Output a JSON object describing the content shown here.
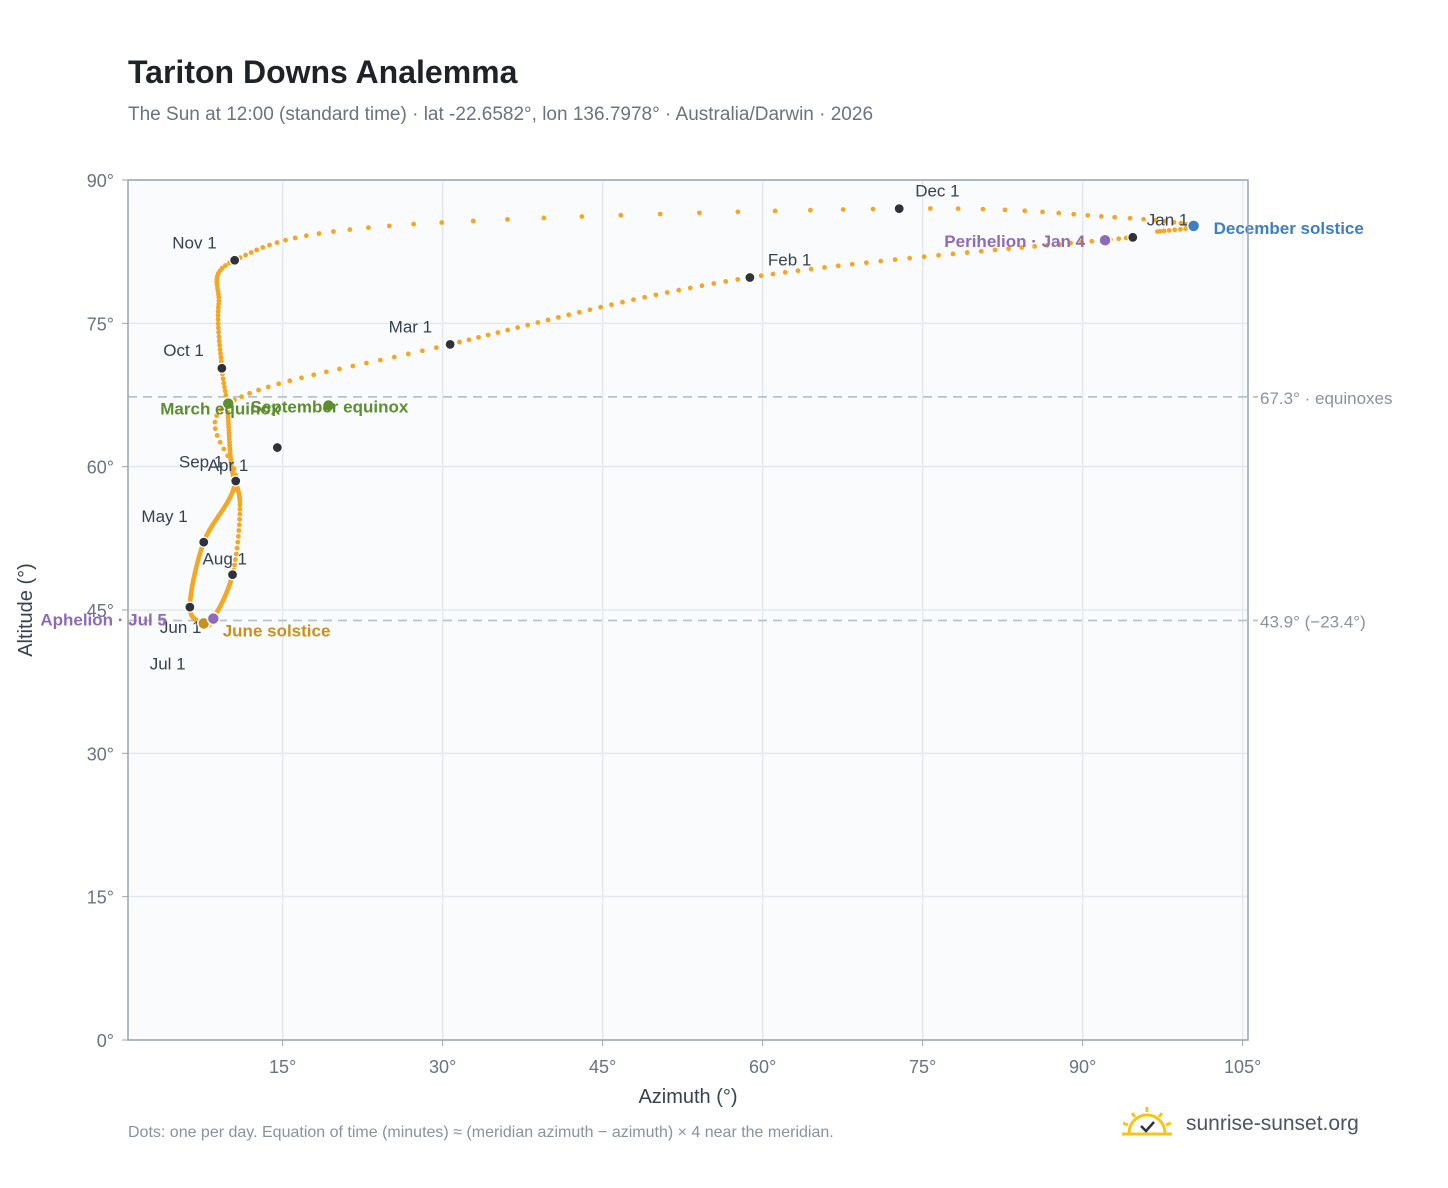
{
  "header": {
    "title": "Tariton Downs Analemma",
    "subtitle": "The Sun at 12:00 (standard time) · lat -22.6582°, lon 136.7978° · Australia/Darwin · 2026"
  },
  "footer": {
    "note": "Dots: one per day. Equation of time (minutes) ≈ (meridian azimuth − azimuth) × 4 near the meridian.",
    "brand": "sunrise-sunset.org"
  },
  "colors": {
    "path": "#f5a623",
    "month_marker": "#2d3339",
    "equinox": "#5b8f2e",
    "june_solstice": "#c8901c",
    "december_solstice": "#3d7ec4",
    "aphelion_perihelion": "#8e6bb8",
    "reference_line": "#b8c2cc",
    "plot_bg": "#f9fbfd",
    "grid": "#e4e9ef",
    "frame": "#9aa3ad"
  },
  "icons": {
    "brand": "sun-logo-icon"
  },
  "chart_data": {
    "type": "scatter",
    "xlabel": "Azimuth (°)",
    "ylabel": "Altitude (°)",
    "xlim": [
      0.5,
      105.5
    ],
    "ylim": [
      0,
      90
    ],
    "x_ticks": [
      15,
      30,
      45,
      60,
      75,
      90,
      105
    ],
    "x_tick_labels": [
      "15°",
      "30°",
      "45°",
      "60°",
      "75°",
      "90°",
      "105°"
    ],
    "y_ticks": [
      0,
      15,
      30,
      45,
      60,
      75,
      90
    ],
    "y_tick_labels": [
      "0°",
      "15°",
      "30°",
      "45°",
      "60°",
      "75°",
      "90°"
    ],
    "grid": true,
    "series_path_note": "daily positions",
    "month_points": [
      {
        "label": "Jan 1",
        "az": 94.7,
        "alt": 84.0
      },
      {
        "label": "Feb 1",
        "az": 58.8,
        "alt": 79.8
      },
      {
        "label": "Mar 1",
        "az": 30.7,
        "alt": 72.8
      },
      {
        "label": "Apr 1",
        "az": 10.6,
        "alt": 58.5
      },
      {
        "label": "May 1",
        "az": 7.6,
        "alt": 52.1
      },
      {
        "label": "Jun 1",
        "az": 6.3,
        "alt": 45.3
      },
      {
        "label": "Jul 1",
        "az": 7.6,
        "alt": 43.6
      },
      {
        "label": "Aug 1",
        "az": 10.3,
        "alt": 48.7
      },
      {
        "label": "Sep 1",
        "az": 14.5,
        "alt": 62.0
      },
      {
        "label": "Oct 1",
        "az": 9.3,
        "alt": 70.3
      },
      {
        "label": "Nov 1",
        "az": 10.5,
        "alt": 81.6
      },
      {
        "label": "Dec 1",
        "az": 72.8,
        "alt": 87.0
      }
    ],
    "events": [
      {
        "label": "March equinox",
        "az": 9.9,
        "alt": 66.6,
        "color_key": "equinox"
      },
      {
        "label": "September equinox",
        "az": 19.3,
        "alt": 66.4,
        "color_key": "equinox"
      },
      {
        "label": "June solstice",
        "az": 7.6,
        "alt": 43.6,
        "color_key": "june_solstice"
      },
      {
        "label": "December solstice",
        "az": 100.4,
        "alt": 85.2,
        "color_key": "december_solstice"
      },
      {
        "label": "Aphelion · Jul 5",
        "az": 8.5,
        "alt": 44.1,
        "color_key": "aphelion_perihelion"
      },
      {
        "label": "Perihelion · Jan 4",
        "az": 92.1,
        "alt": 83.7,
        "color_key": "aphelion_perihelion"
      }
    ],
    "reference_lines": [
      {
        "label": "67.3° · equinoxes",
        "alt": 67.3
      },
      {
        "label": "43.9° (−23.4°)",
        "alt": 43.9
      }
    ]
  }
}
